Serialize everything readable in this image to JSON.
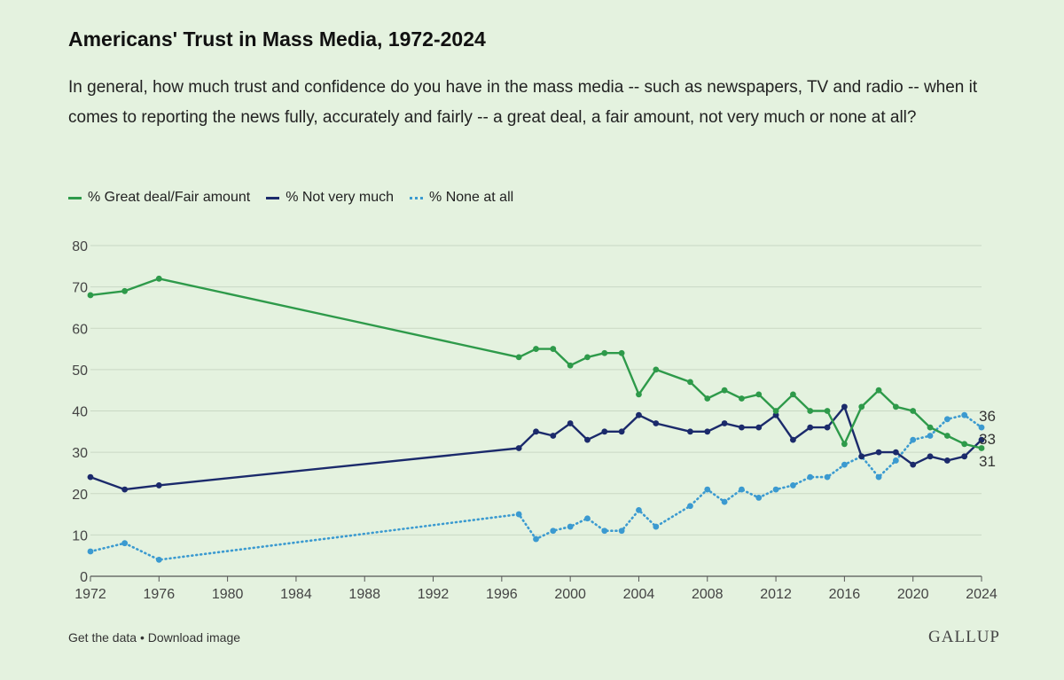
{
  "header": {
    "title": "Americans' Trust in Mass Media, 1972-2024",
    "subtitle": "In general, how much trust and confidence do you have in the mass media -- such as newspapers, TV and radio -- when it comes to reporting the news fully, accurately and fairly -- a great deal, a fair amount, not very much or none at all?"
  },
  "legend": {
    "great_fair": "% Great deal/Fair amount",
    "not_very_much": "% Not very much",
    "none_at_all": "% None at all"
  },
  "colors": {
    "great_fair": "#2e9a4a",
    "not_very_much": "#1b2a6b",
    "none_at_all": "#3b9ad0",
    "grid": "#c9d8c4",
    "axis": "#555555"
  },
  "footer": {
    "get_data": "Get the data",
    "separator": "•",
    "download": "Download image",
    "logo": "GALLUP"
  },
  "chart_data": {
    "type": "line",
    "title": "Americans' Trust in Mass Media, 1972-2024",
    "xlabel": "",
    "ylabel": "",
    "xlim": [
      1972,
      2024
    ],
    "ylim": [
      0,
      80
    ],
    "x_ticks": [
      1972,
      1976,
      1980,
      1984,
      1988,
      1992,
      1996,
      2000,
      2004,
      2008,
      2012,
      2016,
      2020,
      2024
    ],
    "y_ticks": [
      0,
      10,
      20,
      30,
      40,
      50,
      60,
      70,
      80
    ],
    "grid": true,
    "legend_position": "top-left",
    "end_labels": [
      "36",
      "33",
      "31"
    ],
    "x": [
      1972,
      1974,
      1976,
      1997,
      1998,
      1999,
      2000,
      2001,
      2002,
      2003,
      2004,
      2005,
      2007,
      2008,
      2009,
      2010,
      2011,
      2012,
      2013,
      2014,
      2015,
      2016,
      2017,
      2018,
      2019,
      2020,
      2021,
      2022,
      2023,
      2024
    ],
    "series": [
      {
        "name": "% Great deal/Fair amount",
        "style": "solid",
        "values": [
          68,
          69,
          72,
          53,
          55,
          55,
          51,
          53,
          54,
          54,
          44,
          50,
          47,
          43,
          45,
          43,
          44,
          40,
          44,
          40,
          40,
          32,
          41,
          45,
          41,
          40,
          36,
          34,
          32,
          31
        ]
      },
      {
        "name": "% Not very much",
        "style": "solid",
        "values": [
          24,
          21,
          22,
          31,
          35,
          34,
          37,
          33,
          35,
          35,
          39,
          37,
          35,
          35,
          37,
          36,
          36,
          39,
          33,
          36,
          36,
          41,
          29,
          30,
          30,
          27,
          29,
          28,
          29,
          33
        ]
      },
      {
        "name": "% None at all",
        "style": "dotted",
        "values": [
          6,
          8,
          4,
          15,
          9,
          11,
          12,
          14,
          11,
          11,
          16,
          12,
          17,
          21,
          18,
          21,
          19,
          21,
          22,
          24,
          24,
          27,
          29,
          24,
          28,
          33,
          34,
          38,
          39,
          36
        ]
      }
    ]
  }
}
